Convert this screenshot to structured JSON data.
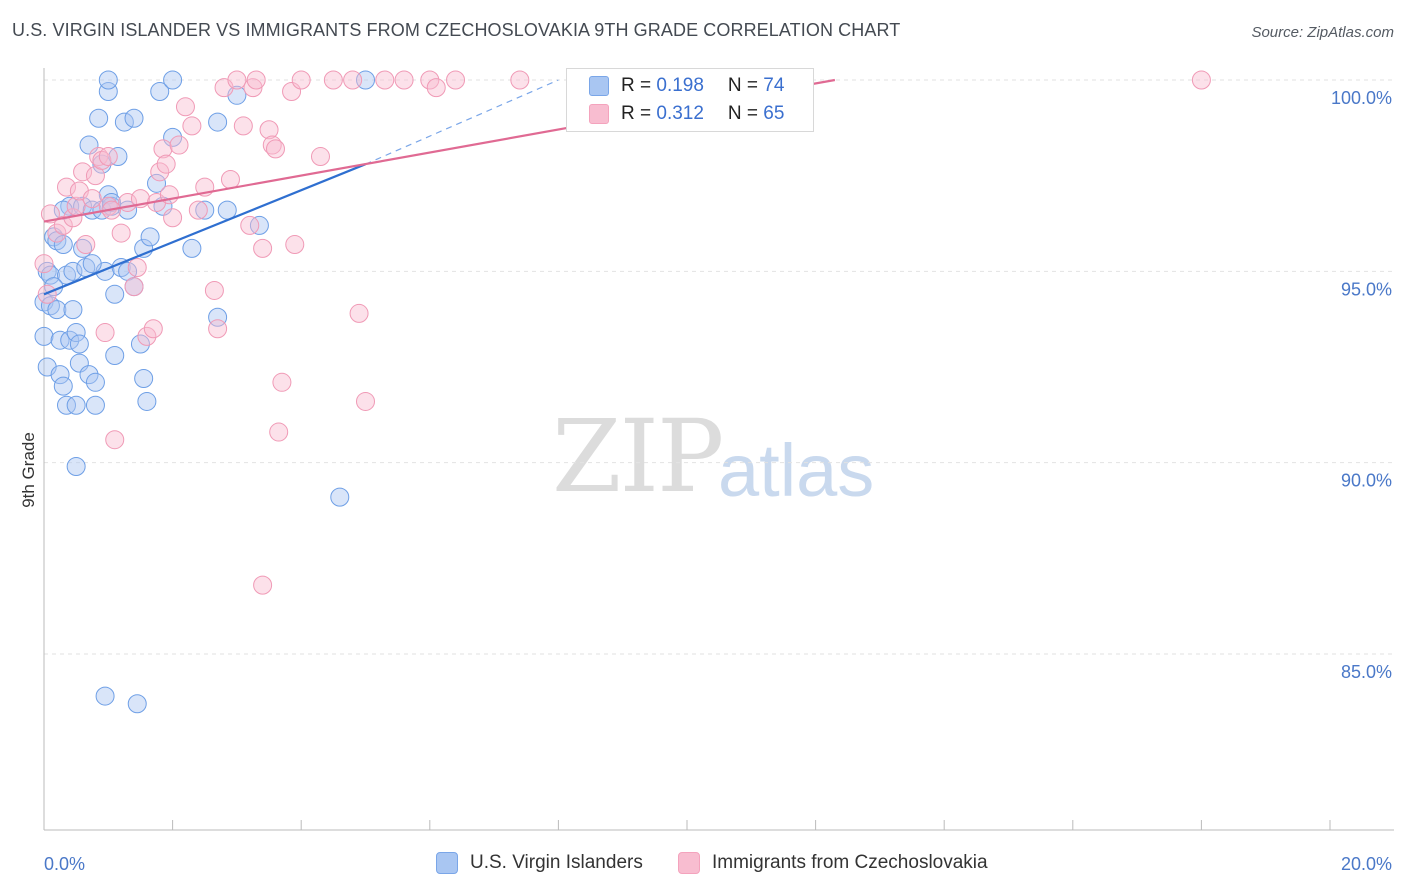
{
  "title": "U.S. VIRGIN ISLANDER VS IMMIGRANTS FROM CZECHOSLOVAKIA 9TH GRADE CORRELATION CHART",
  "source": "Source: ZipAtlas.com",
  "watermark": {
    "zip": "ZIP",
    "atlas": "atlas"
  },
  "colors": {
    "blue": "#7aa6e8",
    "blue_line": "#2f6fd0",
    "pink": "#f4a3bd",
    "pink_line": "#e06a93",
    "axis_text": "#4a78c8",
    "grid": "#dddddd"
  },
  "legend": {
    "rows": [
      {
        "r_label": "R = ",
        "r_value": "0.198",
        "n_label": "N = ",
        "n_value": "74",
        "color": "#a9c6f2"
      },
      {
        "r_label": "R = ",
        "r_value": "0.312",
        "n_label": "N = ",
        "n_value": "65",
        "color": "#f8bdd0"
      }
    ]
  },
  "bottom_legend": [
    {
      "label": "U.S. Virgin Islanders",
      "color": "#a9c6f2"
    },
    {
      "label": "Immigrants from Czechoslovakia",
      "color": "#f8bdd0"
    }
  ],
  "chart_data": {
    "type": "scatter",
    "title": "U.S. VIRGIN ISLANDER VS IMMIGRANTS FROM CZECHOSLOVAKIA 9TH GRADE CORRELATION CHART",
    "xlabel": "",
    "ylabel": "9th Grade",
    "xlim": [
      0,
      20
    ],
    "ylim": [
      80.5,
      100.4
    ],
    "x_tick_labels": [
      "0.0%",
      "20.0%"
    ],
    "y_ticks": [
      85,
      90,
      95,
      100
    ],
    "y_tick_labels": [
      "85.0%",
      "90.0%",
      "95.0%",
      "100.0%"
    ],
    "grid": true,
    "series": [
      {
        "name": "U.S. Virgin Islanders",
        "color": "#7aa6e8",
        "trend": {
          "x0": 0.0,
          "y0": 94.4,
          "x1": 5.0,
          "y1": 97.8,
          "dashed_to_x": 8.0,
          "dashed_to_y": 100.0
        },
        "points": [
          [
            0.0,
            94.2
          ],
          [
            0.0,
            93.3
          ],
          [
            0.05,
            92.5
          ],
          [
            0.05,
            95.0
          ],
          [
            0.1,
            94.9
          ],
          [
            0.1,
            94.1
          ],
          [
            0.15,
            95.9
          ],
          [
            0.2,
            94.0
          ],
          [
            0.2,
            95.8
          ],
          [
            0.25,
            92.3
          ],
          [
            0.25,
            93.2
          ],
          [
            0.3,
            92.0
          ],
          [
            0.3,
            95.7
          ],
          [
            0.35,
            94.9
          ],
          [
            0.35,
            91.5
          ],
          [
            0.4,
            93.2
          ],
          [
            0.4,
            96.7
          ],
          [
            0.45,
            95.0
          ],
          [
            0.45,
            94.0
          ],
          [
            0.5,
            93.4
          ],
          [
            0.5,
            91.5
          ],
          [
            0.5,
            89.9
          ],
          [
            0.55,
            92.6
          ],
          [
            0.6,
            96.7
          ],
          [
            0.6,
            95.6
          ],
          [
            0.65,
            95.1
          ],
          [
            0.7,
            92.3
          ],
          [
            0.7,
            98.3
          ],
          [
            0.75,
            96.6
          ],
          [
            0.8,
            92.1
          ],
          [
            0.8,
            91.5
          ],
          [
            0.85,
            99.0
          ],
          [
            0.9,
            97.8
          ],
          [
            0.9,
            96.6
          ],
          [
            0.95,
            95.0
          ],
          [
            0.95,
            83.9
          ],
          [
            1.0,
            99.7
          ],
          [
            1.0,
            100.0
          ],
          [
            1.0,
            97.0
          ],
          [
            1.05,
            96.7
          ],
          [
            1.1,
            92.8
          ],
          [
            1.1,
            94.4
          ],
          [
            1.15,
            98.0
          ],
          [
            1.2,
            95.1
          ],
          [
            1.25,
            98.9
          ],
          [
            1.3,
            95.0
          ],
          [
            1.3,
            96.6
          ],
          [
            1.4,
            94.6
          ],
          [
            1.4,
            99.0
          ],
          [
            1.45,
            83.7
          ],
          [
            1.5,
            93.1
          ],
          [
            1.55,
            95.6
          ],
          [
            1.55,
            92.2
          ],
          [
            1.6,
            91.6
          ],
          [
            1.65,
            95.9
          ],
          [
            1.75,
            97.3
          ],
          [
            1.8,
            99.7
          ],
          [
            1.85,
            96.7
          ],
          [
            2.0,
            98.5
          ],
          [
            2.0,
            100.0
          ],
          [
            2.3,
            95.6
          ],
          [
            2.5,
            96.6
          ],
          [
            2.7,
            93.8
          ],
          [
            2.7,
            98.9
          ],
          [
            2.85,
            96.6
          ],
          [
            3.0,
            99.6
          ],
          [
            3.35,
            96.2
          ],
          [
            4.6,
            89.1
          ],
          [
            5.0,
            100.0
          ],
          [
            1.05,
            96.8
          ],
          [
            0.75,
            95.2
          ],
          [
            0.15,
            94.6
          ],
          [
            0.55,
            93.1
          ],
          [
            0.3,
            96.6
          ]
        ]
      },
      {
        "name": "Immigrants from Czechoslovakia",
        "color": "#f4a3bd",
        "trend": {
          "x0": 0.0,
          "y0": 96.3,
          "x1": 12.3,
          "y1": 100.0
        },
        "points": [
          [
            0.0,
            95.2
          ],
          [
            0.05,
            94.4
          ],
          [
            0.1,
            96.5
          ],
          [
            0.2,
            96.0
          ],
          [
            0.3,
            96.2
          ],
          [
            0.35,
            97.2
          ],
          [
            0.45,
            96.4
          ],
          [
            0.5,
            96.7
          ],
          [
            0.55,
            97.1
          ],
          [
            0.6,
            97.6
          ],
          [
            0.65,
            95.7
          ],
          [
            0.75,
            96.9
          ],
          [
            0.8,
            97.5
          ],
          [
            0.85,
            98.0
          ],
          [
            0.9,
            97.9
          ],
          [
            0.95,
            93.4
          ],
          [
            1.0,
            98.0
          ],
          [
            1.0,
            96.7
          ],
          [
            1.05,
            96.6
          ],
          [
            1.1,
            90.6
          ],
          [
            1.2,
            96.0
          ],
          [
            1.3,
            96.8
          ],
          [
            1.4,
            94.6
          ],
          [
            1.45,
            95.1
          ],
          [
            1.5,
            96.9
          ],
          [
            1.6,
            93.3
          ],
          [
            1.7,
            93.5
          ],
          [
            1.75,
            96.8
          ],
          [
            1.8,
            97.6
          ],
          [
            1.85,
            98.2
          ],
          [
            1.9,
            97.8
          ],
          [
            1.95,
            97.0
          ],
          [
            2.0,
            96.4
          ],
          [
            2.1,
            98.3
          ],
          [
            2.2,
            99.3
          ],
          [
            2.3,
            98.8
          ],
          [
            2.4,
            96.6
          ],
          [
            2.5,
            97.2
          ],
          [
            2.65,
            94.5
          ],
          [
            2.7,
            93.5
          ],
          [
            2.8,
            99.8
          ],
          [
            2.9,
            97.4
          ],
          [
            3.0,
            100.0
          ],
          [
            3.1,
            98.8
          ],
          [
            3.2,
            96.2
          ],
          [
            3.25,
            99.8
          ],
          [
            3.3,
            100.0
          ],
          [
            3.4,
            95.6
          ],
          [
            3.5,
            98.7
          ],
          [
            3.55,
            98.3
          ],
          [
            3.6,
            98.2
          ],
          [
            3.7,
            92.1
          ],
          [
            3.85,
            99.7
          ],
          [
            3.9,
            95.7
          ],
          [
            4.0,
            100.0
          ],
          [
            4.3,
            98.0
          ],
          [
            4.5,
            100.0
          ],
          [
            4.8,
            100.0
          ],
          [
            4.9,
            93.9
          ],
          [
            5.0,
            91.6
          ],
          [
            5.3,
            100.0
          ],
          [
            5.6,
            100.0
          ],
          [
            6.0,
            100.0
          ],
          [
            6.4,
            100.0
          ],
          [
            18.0,
            100.0
          ]
        ]
      }
    ],
    "extra_outliers_note": "",
    "extra_points_series2": [
      [
        3.65,
        90.8
      ],
      [
        3.4,
        86.8
      ],
      [
        6.1,
        99.8
      ],
      [
        7.4,
        100.0
      ],
      [
        8.5,
        100.0
      ]
    ]
  }
}
